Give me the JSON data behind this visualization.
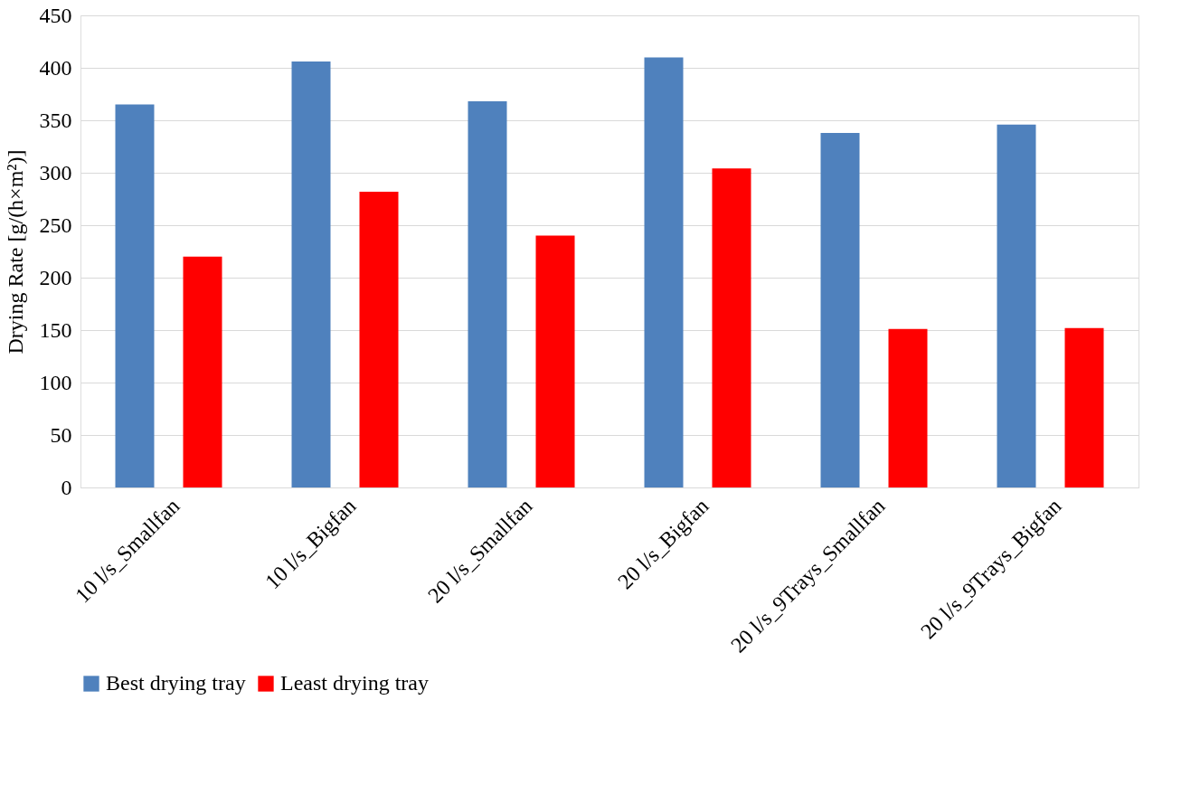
{
  "chart_data": {
    "type": "bar",
    "ylabel": "Drying Rate [g/(h×m²)]",
    "categories": [
      "10 l/s_Smallfan",
      "10 l/s_Bigfan",
      "20 l/s_Smallfan",
      "20 l/s_Bigfan",
      "20 l/s_9Trays_Smallfan",
      "20 l/s_9Trays_Bigfan"
    ],
    "series": [
      {
        "name": "Best drying tray",
        "color": "#4f81bd",
        "values": [
          365,
          406,
          368,
          410,
          338,
          346
        ]
      },
      {
        "name": "Least drying tray",
        "color": "#ff0000",
        "values": [
          220,
          282,
          240,
          304,
          151,
          152
        ]
      }
    ],
    "ylim": [
      0,
      450
    ],
    "yticks": [
      0,
      50,
      100,
      150,
      200,
      250,
      300,
      350,
      400,
      450
    ],
    "grid": "y",
    "legend": "bottom"
  }
}
